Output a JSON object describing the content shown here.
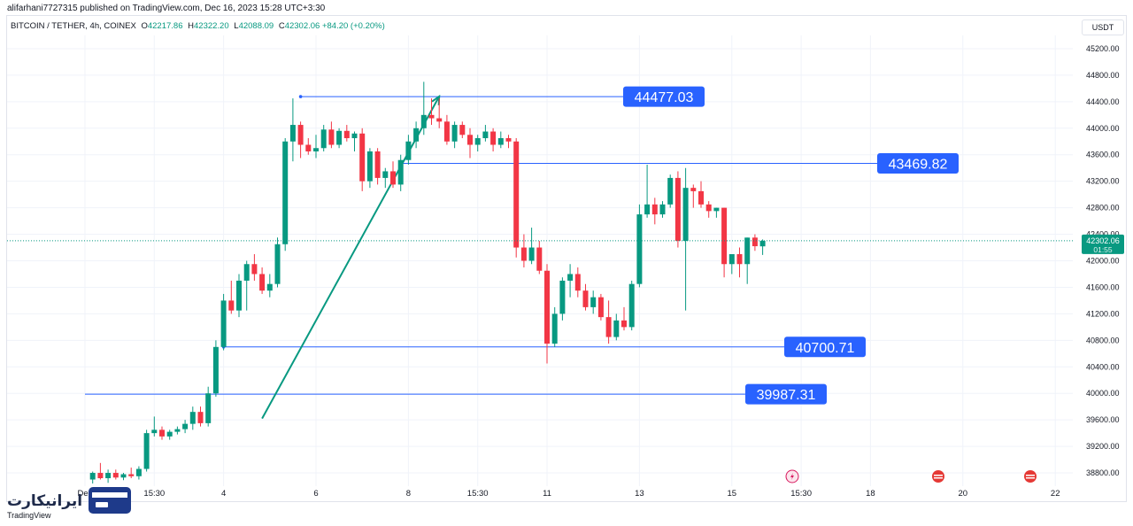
{
  "header": {
    "published": "alifarhani7727315 published on TradingView.com, Dec 16, 2023 15:28 UTC+3:30",
    "symbol": "BITCOIN / TETHER, 4h, COINEX",
    "o_label": "O",
    "o_value": "42217.86",
    "h_label": "H",
    "h_value": "42322.20",
    "l_label": "L",
    "l_value": "42088.09",
    "c_label": "C",
    "c_value": "42302.06",
    "change": "+84.20 (+0.20%)"
  },
  "currency_button": "USDT",
  "logo": {
    "text": "ایرانیکارت",
    "sub": "TradingView"
  },
  "colors": {
    "up": "#089981",
    "down": "#f23645",
    "line": "#2962ff",
    "label_bg": "#2962ff",
    "trend": "#089981",
    "axis_text": "#131722"
  },
  "chart_data": {
    "type": "candlestick",
    "title": "BITCOIN / TETHER, 4h, COINEX",
    "ylim": [
      38600,
      45400
    ],
    "y_ticks": [
      38800,
      39200,
      39600,
      40000,
      40400,
      40800,
      41200,
      41600,
      42000,
      42400,
      42800,
      43200,
      43600,
      44000,
      44400,
      44800,
      45200
    ],
    "y_tick_labels": [
      "38800.00",
      "39200.00",
      "39600.00",
      "40000.00",
      "40400.00",
      "40800.00",
      "41200.00",
      "41600.00",
      "42000.00",
      "42400.00",
      "42800.00",
      "43200.00",
      "43600.00",
      "44000.00",
      "44400.00",
      "44800.00",
      "45200.00"
    ],
    "x_range": [
      0,
      140
    ],
    "x_ticks": [
      {
        "label": "Dec",
        "x": 0
      },
      {
        "label": "15:30",
        "x": 9
      },
      {
        "label": "4",
        "x": 18
      },
      {
        "label": "6",
        "x": 30
      },
      {
        "label": "8",
        "x": 42
      },
      {
        "label": "15:30",
        "x": 51
      },
      {
        "label": "11",
        "x": 60
      },
      {
        "label": "13",
        "x": 72
      },
      {
        "label": "15",
        "x": 84
      },
      {
        "label": "15:30",
        "x": 93
      },
      {
        "label": "18",
        "x": 102
      },
      {
        "label": "20",
        "x": 114
      },
      {
        "label": "22",
        "x": 126
      }
    ],
    "candles": [
      [
        1,
        38700,
        38820,
        38640,
        38800
      ],
      [
        2,
        38800,
        38950,
        38700,
        38720
      ],
      [
        3,
        38720,
        38850,
        38650,
        38800
      ],
      [
        4,
        38800,
        38850,
        38700,
        38730
      ],
      [
        5,
        38730,
        38800,
        38690,
        38780
      ],
      [
        6,
        38780,
        38880,
        38720,
        38750
      ],
      [
        7,
        38750,
        38900,
        38700,
        38860
      ],
      [
        8,
        38860,
        39450,
        38820,
        39400
      ],
      [
        9,
        39400,
        39650,
        39350,
        39450
      ],
      [
        10,
        39450,
        39500,
        39300,
        39350
      ],
      [
        11,
        39350,
        39450,
        39300,
        39420
      ],
      [
        12,
        39420,
        39500,
        39380,
        39460
      ],
      [
        13,
        39460,
        39600,
        39400,
        39540
      ],
      [
        14,
        39540,
        39800,
        39450,
        39720
      ],
      [
        15,
        39720,
        39800,
        39500,
        39550
      ],
      [
        16,
        39550,
        40100,
        39500,
        40000
      ],
      [
        17,
        40000,
        40800,
        39950,
        40700
      ],
      [
        18,
        40700,
        41500,
        40650,
        41400
      ],
      [
        19,
        41400,
        41700,
        41200,
        41250
      ],
      [
        20,
        41250,
        41800,
        41150,
        41700
      ],
      [
        21,
        41700,
        42000,
        41250,
        41950
      ],
      [
        22,
        41950,
        42100,
        41700,
        41800
      ],
      [
        23,
        41800,
        41900,
        41500,
        41550
      ],
      [
        24,
        41550,
        41800,
        41450,
        41650
      ],
      [
        25,
        41650,
        42350,
        41600,
        42250
      ],
      [
        26,
        42250,
        43850,
        42150,
        43800
      ],
      [
        27,
        43800,
        44450,
        43500,
        44050
      ],
      [
        28,
        44050,
        44100,
        43550,
        43750
      ],
      [
        29,
        43750,
        43850,
        43600,
        43650
      ],
      [
        30,
        43650,
        43900,
        43550,
        43700
      ],
      [
        31,
        43700,
        44050,
        43650,
        43980
      ],
      [
        32,
        43980,
        44100,
        43700,
        43750
      ],
      [
        33,
        43750,
        44000,
        43700,
        43960
      ],
      [
        34,
        43960,
        44050,
        43800,
        43850
      ],
      [
        35,
        43850,
        43950,
        43650,
        43920
      ],
      [
        36,
        43920,
        44000,
        43050,
        43200
      ],
      [
        37,
        43200,
        43700,
        43100,
        43650
      ],
      [
        38,
        43650,
        43700,
        43150,
        43250
      ],
      [
        39,
        43250,
        43400,
        43100,
        43350
      ],
      [
        40,
        43350,
        43500,
        43100,
        43150
      ],
      [
        41,
        43150,
        43600,
        43050,
        43520
      ],
      [
        42,
        43520,
        43900,
        43450,
        43800
      ],
      [
        43,
        43800,
        44100,
        43700,
        44000
      ],
      [
        44,
        44000,
        44700,
        43900,
        44200
      ],
      [
        45,
        44200,
        44450,
        44050,
        44150
      ],
      [
        46,
        44150,
        44450,
        44000,
        44100
      ],
      [
        47,
        44100,
        44200,
        43750,
        43800
      ],
      [
        48,
        43800,
        44100,
        43700,
        44050
      ],
      [
        49,
        44050,
        44100,
        43850,
        43900
      ],
      [
        50,
        43900,
        44000,
        43550,
        43750
      ],
      [
        51,
        43750,
        43900,
        43650,
        43850
      ],
      [
        52,
        43850,
        44050,
        43800,
        43950
      ],
      [
        53,
        43950,
        44000,
        43650,
        43750
      ],
      [
        54,
        43750,
        43950,
        43700,
        43850
      ],
      [
        55,
        43850,
        43900,
        43700,
        43800
      ],
      [
        56,
        43800,
        43850,
        42050,
        42200
      ],
      [
        57,
        42200,
        42400,
        41900,
        42000
      ],
      [
        58,
        42000,
        42500,
        41950,
        42200
      ],
      [
        59,
        42200,
        42300,
        41800,
        41850
      ],
      [
        60,
        41850,
        41950,
        40450,
        40750
      ],
      [
        61,
        40750,
        41300,
        40700,
        41200
      ],
      [
        62,
        41200,
        41750,
        41100,
        41700
      ],
      [
        63,
        41700,
        41950,
        41450,
        41800
      ],
      [
        64,
        41800,
        41900,
        41450,
        41550
      ],
      [
        65,
        41550,
        41650,
        41250,
        41300
      ],
      [
        66,
        41300,
        41550,
        41200,
        41450
      ],
      [
        67,
        41450,
        41500,
        41100,
        41150
      ],
      [
        68,
        41150,
        41400,
        40750,
        40850
      ],
      [
        69,
        40850,
        41200,
        40800,
        41100
      ],
      [
        70,
        41100,
        41300,
        40950,
        41000
      ],
      [
        71,
        41000,
        41700,
        40950,
        41650
      ],
      [
        72,
        41650,
        42850,
        41600,
        42700
      ],
      [
        73,
        42700,
        43450,
        42650,
        42850
      ],
      [
        74,
        42850,
        42950,
        42550,
        42700
      ],
      [
        75,
        42700,
        42900,
        42650,
        42850
      ],
      [
        76,
        42850,
        43300,
        42800,
        43250
      ],
      [
        77,
        43250,
        43350,
        42200,
        42300
      ],
      [
        78,
        42300,
        43400,
        41250,
        43100
      ],
      [
        79,
        43100,
        43150,
        42800,
        43050
      ],
      [
        80,
        43050,
        43200,
        42800,
        42850
      ],
      [
        81,
        42850,
        42900,
        42650,
        42750
      ],
      [
        82,
        42750,
        42800,
        42650,
        42800
      ],
      [
        83,
        42800,
        42800,
        41750,
        41950
      ],
      [
        84,
        41950,
        42100,
        41800,
        42100
      ],
      [
        85,
        42100,
        42200,
        41750,
        41950
      ],
      [
        86,
        41950,
        42350,
        41650,
        42350
      ],
      [
        87,
        42350,
        42400,
        42150,
        42220
      ],
      [
        88,
        42217.86,
        42322.2,
        42088.09,
        42302.06
      ]
    ],
    "annotations": {
      "lines": [
        {
          "label": "44477.03",
          "y": 44477.03,
          "x_start": 28
        },
        {
          "label": "43469.82",
          "y": 43469.82,
          "x_start": 41
        },
        {
          "label": "40700.71",
          "y": 40700.71,
          "x_start": 18
        },
        {
          "label": "39987.31",
          "y": 39987.31,
          "x_start": 0
        }
      ],
      "trendline": {
        "x1": 23,
        "y1": 39620,
        "x2": 46,
        "y2": 44480
      }
    },
    "last_price": {
      "value": "42302.06",
      "countdown": "01:55"
    }
  }
}
